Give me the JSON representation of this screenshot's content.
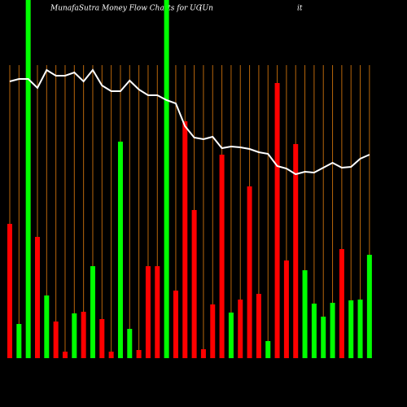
{
  "chart_data": {
    "type": "bar-line",
    "title": "MunafaSutra  Money Flow  Charts for UG",
    "title_tail": [
      "(Un",
      "it"
    ],
    "ylim": [
      0,
      440
    ],
    "background": "#000000",
    "grid_color": "#b8660b",
    "line_color": "#ffffff",
    "bar_values": [
      165,
      42,
      440,
      149,
      77,
      45,
      8,
      55,
      57,
      113,
      48,
      8,
      266,
      36,
      10,
      113,
      113,
      440,
      83,
      291,
      182,
      11,
      66,
      250,
      56,
      72,
      211,
      79,
      21,
      338,
      120,
      263,
      108,
      67,
      51,
      68,
      134,
      71,
      72,
      127
    ],
    "bar_colors": [
      "#ff0000",
      "#00ff00",
      "#00ff00",
      "#ff0000",
      "#00ff00",
      "#ff0000",
      "#ff0000",
      "#00ff00",
      "#ff0000",
      "#00ff00",
      "#ff0000",
      "#ff0000",
      "#00ff00",
      "#00ff00",
      "#ff0000",
      "#ff0000",
      "#ff0000",
      "#00ff00",
      "#ff0000",
      "#ff0000",
      "#ff0000",
      "#ff0000",
      "#ff0000",
      "#ff0000",
      "#00ff00",
      "#ff0000",
      "#ff0000",
      "#ff0000",
      "#00ff00",
      "#ff0000",
      "#ff0000",
      "#ff0000",
      "#00ff00",
      "#00ff00",
      "#00ff00",
      "#00ff00",
      "#ff0000",
      "#00ff00",
      "#00ff00",
      "#00ff00"
    ],
    "line_values": [
      340,
      343,
      343,
      332,
      354,
      347,
      347,
      351,
      340,
      354,
      335,
      328,
      328,
      341,
      330,
      323,
      323,
      317,
      313,
      285,
      271,
      269,
      272,
      258,
      260,
      259,
      257,
      253,
      251,
      236,
      233,
      226,
      229,
      228,
      234,
      240,
      234,
      235,
      245,
      250
    ]
  }
}
